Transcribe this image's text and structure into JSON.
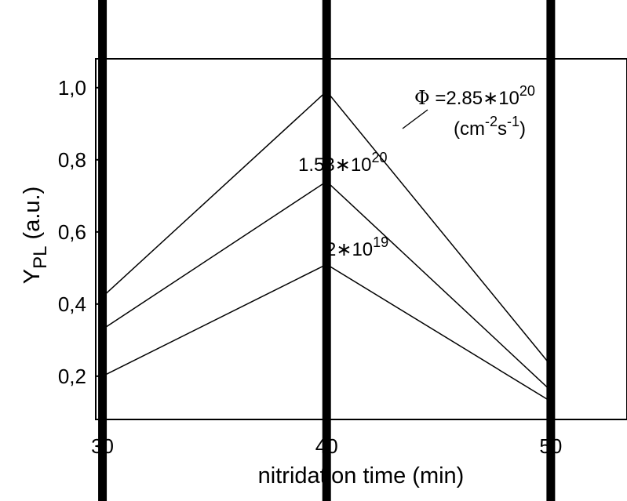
{
  "chart_data": {
    "type": "line",
    "x": [
      30,
      40,
      50
    ],
    "xlim": [
      29.7,
      53.4
    ],
    "ylim": [
      0.08,
      1.08
    ],
    "xticks": [
      "30",
      "40",
      "50"
    ],
    "yticks": [
      "0,2",
      "0,4",
      "0,6",
      "0,8",
      "1,0"
    ],
    "ytick_values": [
      0.2,
      0.4,
      0.6,
      0.8,
      1.0
    ],
    "xlabel": "nitridation time (min)",
    "ylabel": {
      "main": "Y",
      "sub": "PL",
      "rest": " (a.u.)"
    },
    "series": [
      {
        "values": [
          0.42,
          0.99,
          0.23
        ]
      },
      {
        "values": [
          0.33,
          0.74,
          0.16
        ]
      },
      {
        "values": [
          0.2,
          0.51,
          0.13
        ]
      }
    ],
    "vertical_markers": [
      30,
      40,
      50
    ],
    "annotations": {
      "phi": {
        "symbol": "Φ",
        "text": " =2.85∗10",
        "sup": "20"
      },
      "unit": {
        "open": "(cm",
        "sup1": "-2",
        "mid": "s",
        "sup2": "-1",
        "close": ")"
      },
      "mid": {
        "text": "1.53∗10",
        "sup": "20"
      },
      "low": {
        "text": "2∗10",
        "sup": "19"
      }
    },
    "grid": false,
    "legend": "none"
  }
}
